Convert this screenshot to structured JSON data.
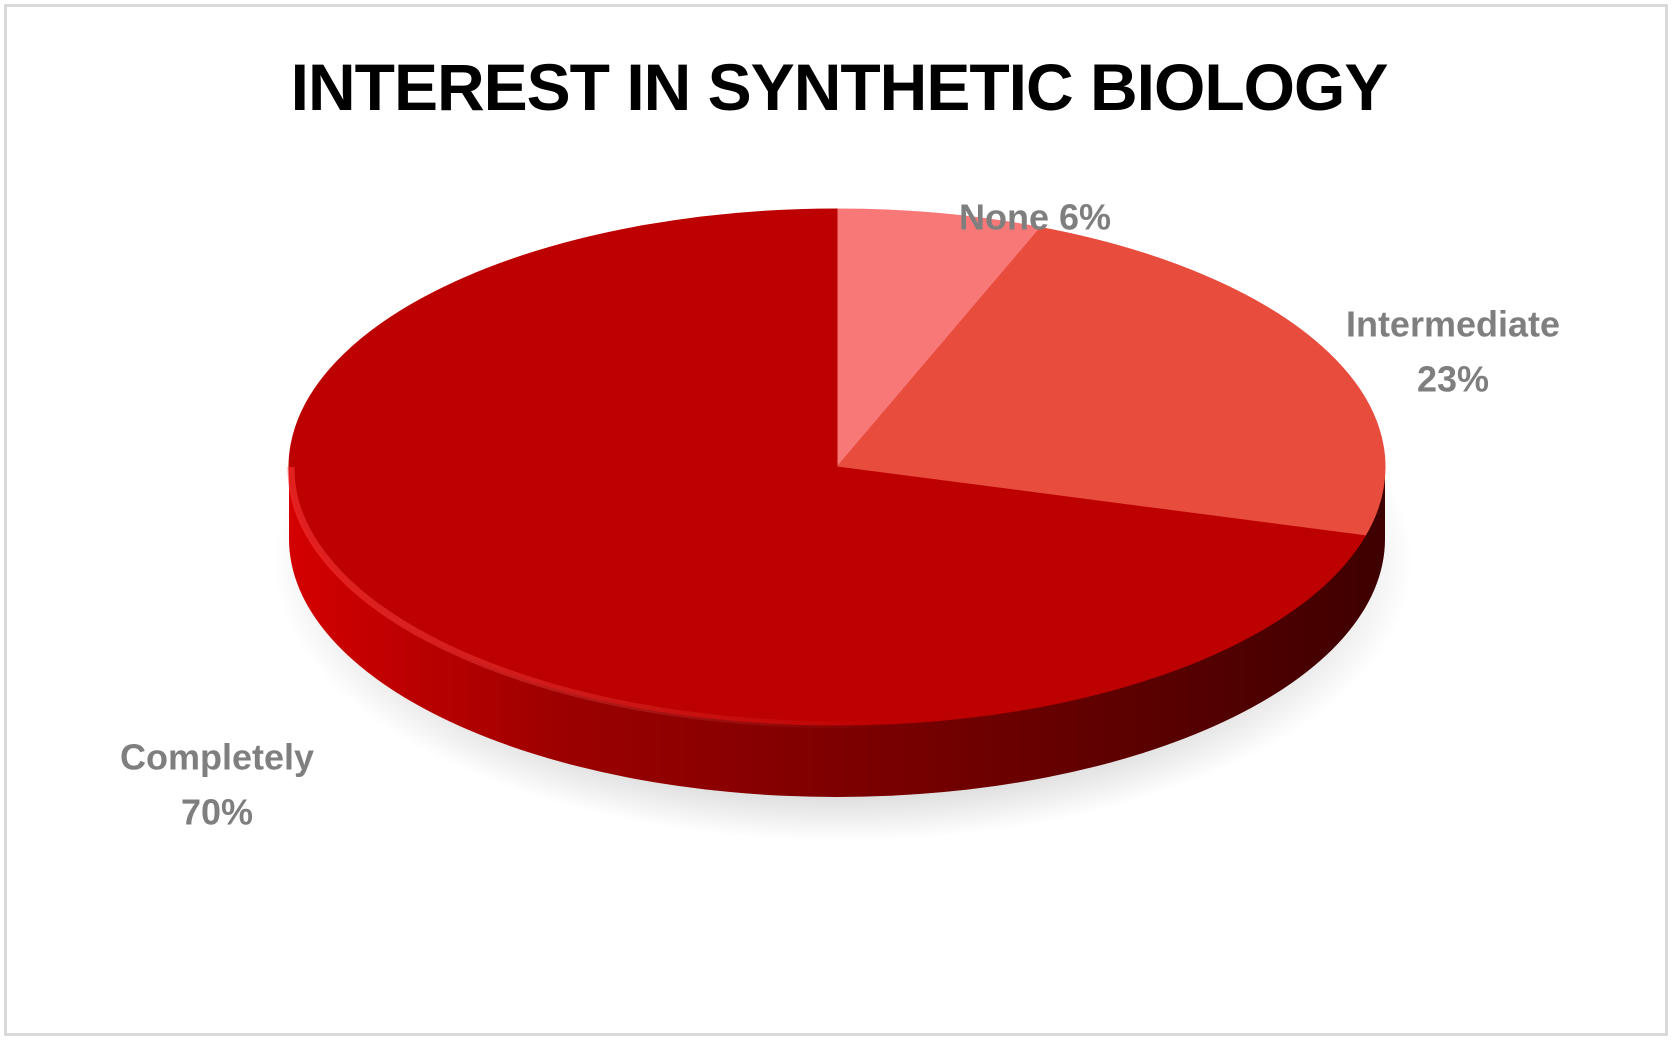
{
  "chart_data": {
    "type": "pie",
    "title": "INTEREST IN SYNTHETIC BIOLOGY",
    "slices": [
      {
        "label": "None",
        "value": 6,
        "value_text": "6%",
        "color": "#f87878"
      },
      {
        "label": "Intermediate",
        "value": 23,
        "value_text": "23%",
        "color": "#e84c3d"
      },
      {
        "label": "Completely",
        "value": 70,
        "value_text": "70%",
        "color": "#bd0000"
      }
    ],
    "legend": "none",
    "style": "3d"
  }
}
